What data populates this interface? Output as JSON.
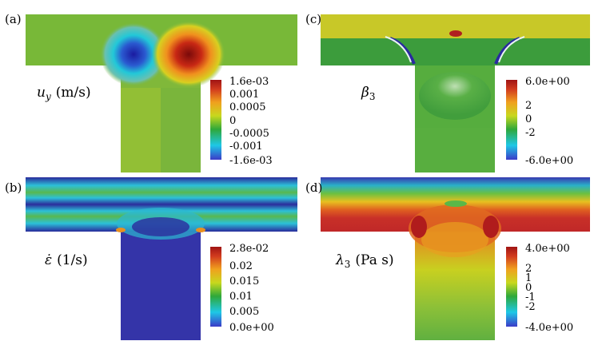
{
  "panels": [
    {
      "id": "(a)",
      "quantity": "u",
      "quantity_sub": "y",
      "unit": "(m/s)",
      "colorbar": "rainbow",
      "colorbar_labels": [
        "1.6e-03",
        "0.001",
        "0.0005",
        "0",
        "-0.0005",
        "-0.001",
        "-1.6e-03"
      ]
    },
    {
      "id": "(c)",
      "quantity": "β",
      "quantity_sub": "3",
      "unit": "",
      "colorbar": "rainbow",
      "colorbar_labels": [
        "6.0e+00",
        "2",
        "0",
        "-2",
        "-6.0e+00"
      ]
    },
    {
      "id": "(b)",
      "quantity": "ε̇",
      "quantity_sub": "",
      "unit": "(1/s)",
      "colorbar": "rainbow",
      "colorbar_labels": [
        "2.8e-02",
        "0.02",
        "0.015",
        "0.01",
        "0.005",
        "0.0e+00"
      ]
    },
    {
      "id": "(d)",
      "quantity": "λ",
      "quantity_sub": "3",
      "unit": "(Pa s)",
      "colorbar": "rainbow",
      "colorbar_labels": [
        "4.0e+00",
        "2",
        "1",
        "0",
        "-1",
        "-2",
        "-4.0e+00"
      ]
    }
  ],
  "colors": {
    "min": "#3b4cc0",
    "cyan": "#00d3c8",
    "green": "#6ab830",
    "yellow": "#e6d41e",
    "red": "#c21e1e",
    "max": "#8b0f0f"
  }
}
